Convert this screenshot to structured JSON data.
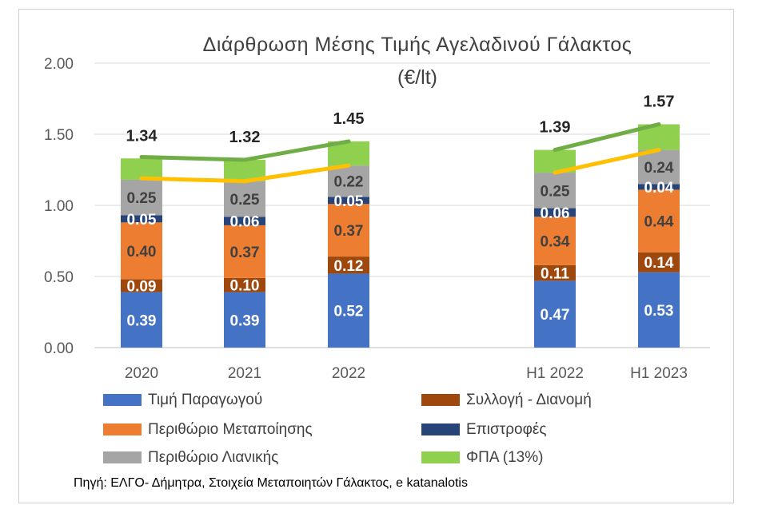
{
  "chart_data": {
    "type": "bar",
    "stacked": true,
    "title": "Διάρθρωση Μέσης Τιμής Αγελαδινού Γάλακτος",
    "subtitle": "(€/lt)",
    "categories": [
      "2020",
      "2021",
      "2022",
      "H1 2022",
      "H1 2023"
    ],
    "ylim": [
      0,
      2.0
    ],
    "yticks": [
      "0.00",
      "0.50",
      "1.00",
      "1.50",
      "2.00"
    ],
    "grid": true,
    "legend_position": "bottom",
    "series": [
      {
        "name": "Τιμή Παραγωγού",
        "color": "#4472C4",
        "label_color": "#ffffff",
        "values": [
          0.39,
          0.39,
          0.52,
          0.47,
          0.53
        ],
        "labels": [
          "0.39",
          "0.39",
          "0.52",
          "0.47",
          "0.53"
        ]
      },
      {
        "name": "Συλλογή - Διανομή",
        "color": "#9E480E",
        "label_color": "#ffffff",
        "values": [
          0.09,
          0.1,
          0.12,
          0.11,
          0.14
        ],
        "labels": [
          "0.09",
          "0.10",
          "0.12",
          "0.11",
          "0.14"
        ]
      },
      {
        "name": "Περιθώριο Μεταποίησης",
        "color": "#ED7D31",
        "label_color": "#404040",
        "values": [
          0.4,
          0.37,
          0.37,
          0.34,
          0.44
        ],
        "labels": [
          "0.40",
          "0.37",
          "0.37",
          "0.34",
          "0.44"
        ]
      },
      {
        "name": "Επιστροφές",
        "color": "#264478",
        "label_color": "#ffffff",
        "values": [
          0.05,
          0.06,
          0.05,
          0.06,
          0.04
        ],
        "labels": [
          "0.05",
          "0.06",
          "0.05",
          "0.06",
          "0.04"
        ]
      },
      {
        "name": "Περιθώριο Λιανικής",
        "color": "#A5A5A5",
        "label_color": "#404040",
        "values": [
          0.25,
          0.25,
          0.22,
          0.25,
          0.24
        ],
        "labels": [
          "0.25",
          "0.25",
          "0.22",
          "0.25",
          "0.24"
        ]
      },
      {
        "name": "ΦΠΑ (13%)",
        "color": "#8FD14F",
        "label_color": "#404040",
        "values": [
          0.15,
          0.15,
          0.17,
          0.16,
          0.18
        ],
        "labels": [
          "",
          "",
          "",
          "",
          ""
        ]
      }
    ],
    "totals": [
      "1.34",
      "1.32",
      "1.45",
      "1.39",
      "1.57"
    ],
    "trend_lines": [
      {
        "color": "#70AD47",
        "groups": [
          [
            1.34,
            1.32,
            1.45
          ],
          [
            1.39,
            1.57
          ]
        ]
      },
      {
        "color": "#FFC000",
        "groups": [
          [
            1.19,
            1.17,
            1.28
          ],
          [
            1.23,
            1.39
          ]
        ]
      }
    ]
  },
  "source": "Πηγή: ΕΛΓΟ- Δήμητρα, Στοιχεία Μεταποιητών Γάλακτος, e katanalotis"
}
